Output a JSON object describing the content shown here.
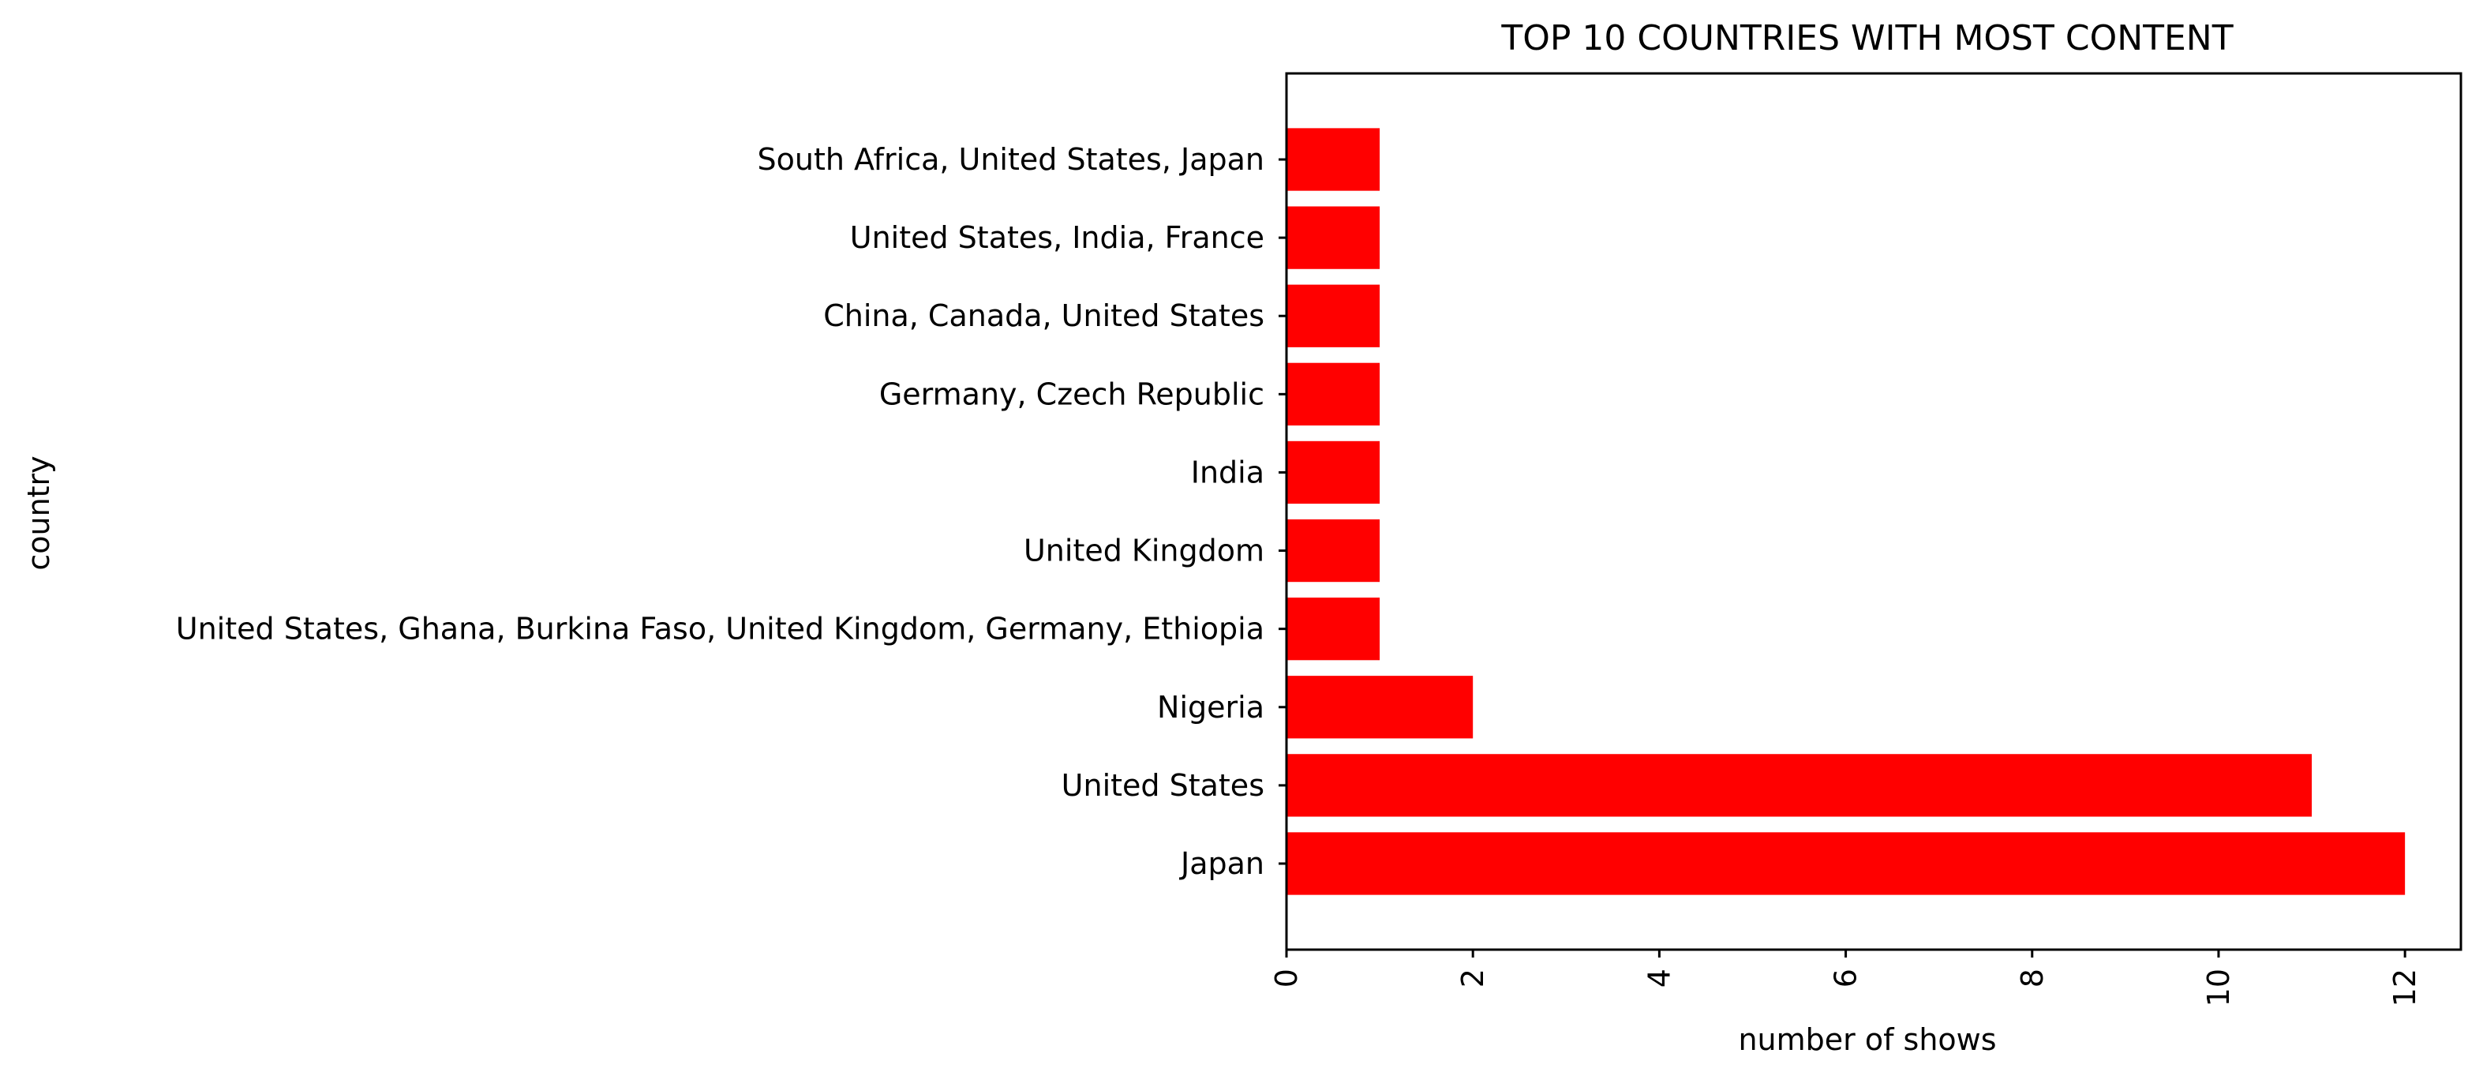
{
  "chart_data": {
    "type": "bar",
    "orientation": "horizontal",
    "title": "TOP 10 COUNTRIES WITH MOST CONTENT",
    "xlabel": "number of shows",
    "ylabel": "country",
    "categories": [
      "Japan",
      "United States",
      "Nigeria",
      "United States, Ghana, Burkina Faso, United Kingdom, Germany, Ethiopia",
      "United Kingdom",
      "India",
      "Germany, Czech Republic",
      "China, Canada, United States",
      "United States, India, France",
      "South Africa, United States, Japan"
    ],
    "values": [
      12,
      11,
      2,
      1,
      1,
      1,
      1,
      1,
      1,
      1
    ],
    "xlim": [
      0,
      12.6
    ],
    "xticks": [
      0,
      2,
      4,
      6,
      8,
      10,
      12
    ],
    "xtick_labels": [
      "0",
      "2",
      "4",
      "6",
      "8",
      "10",
      "12"
    ],
    "xtick_rotation": 90,
    "grid": false,
    "bar_color": "#ff0000"
  }
}
